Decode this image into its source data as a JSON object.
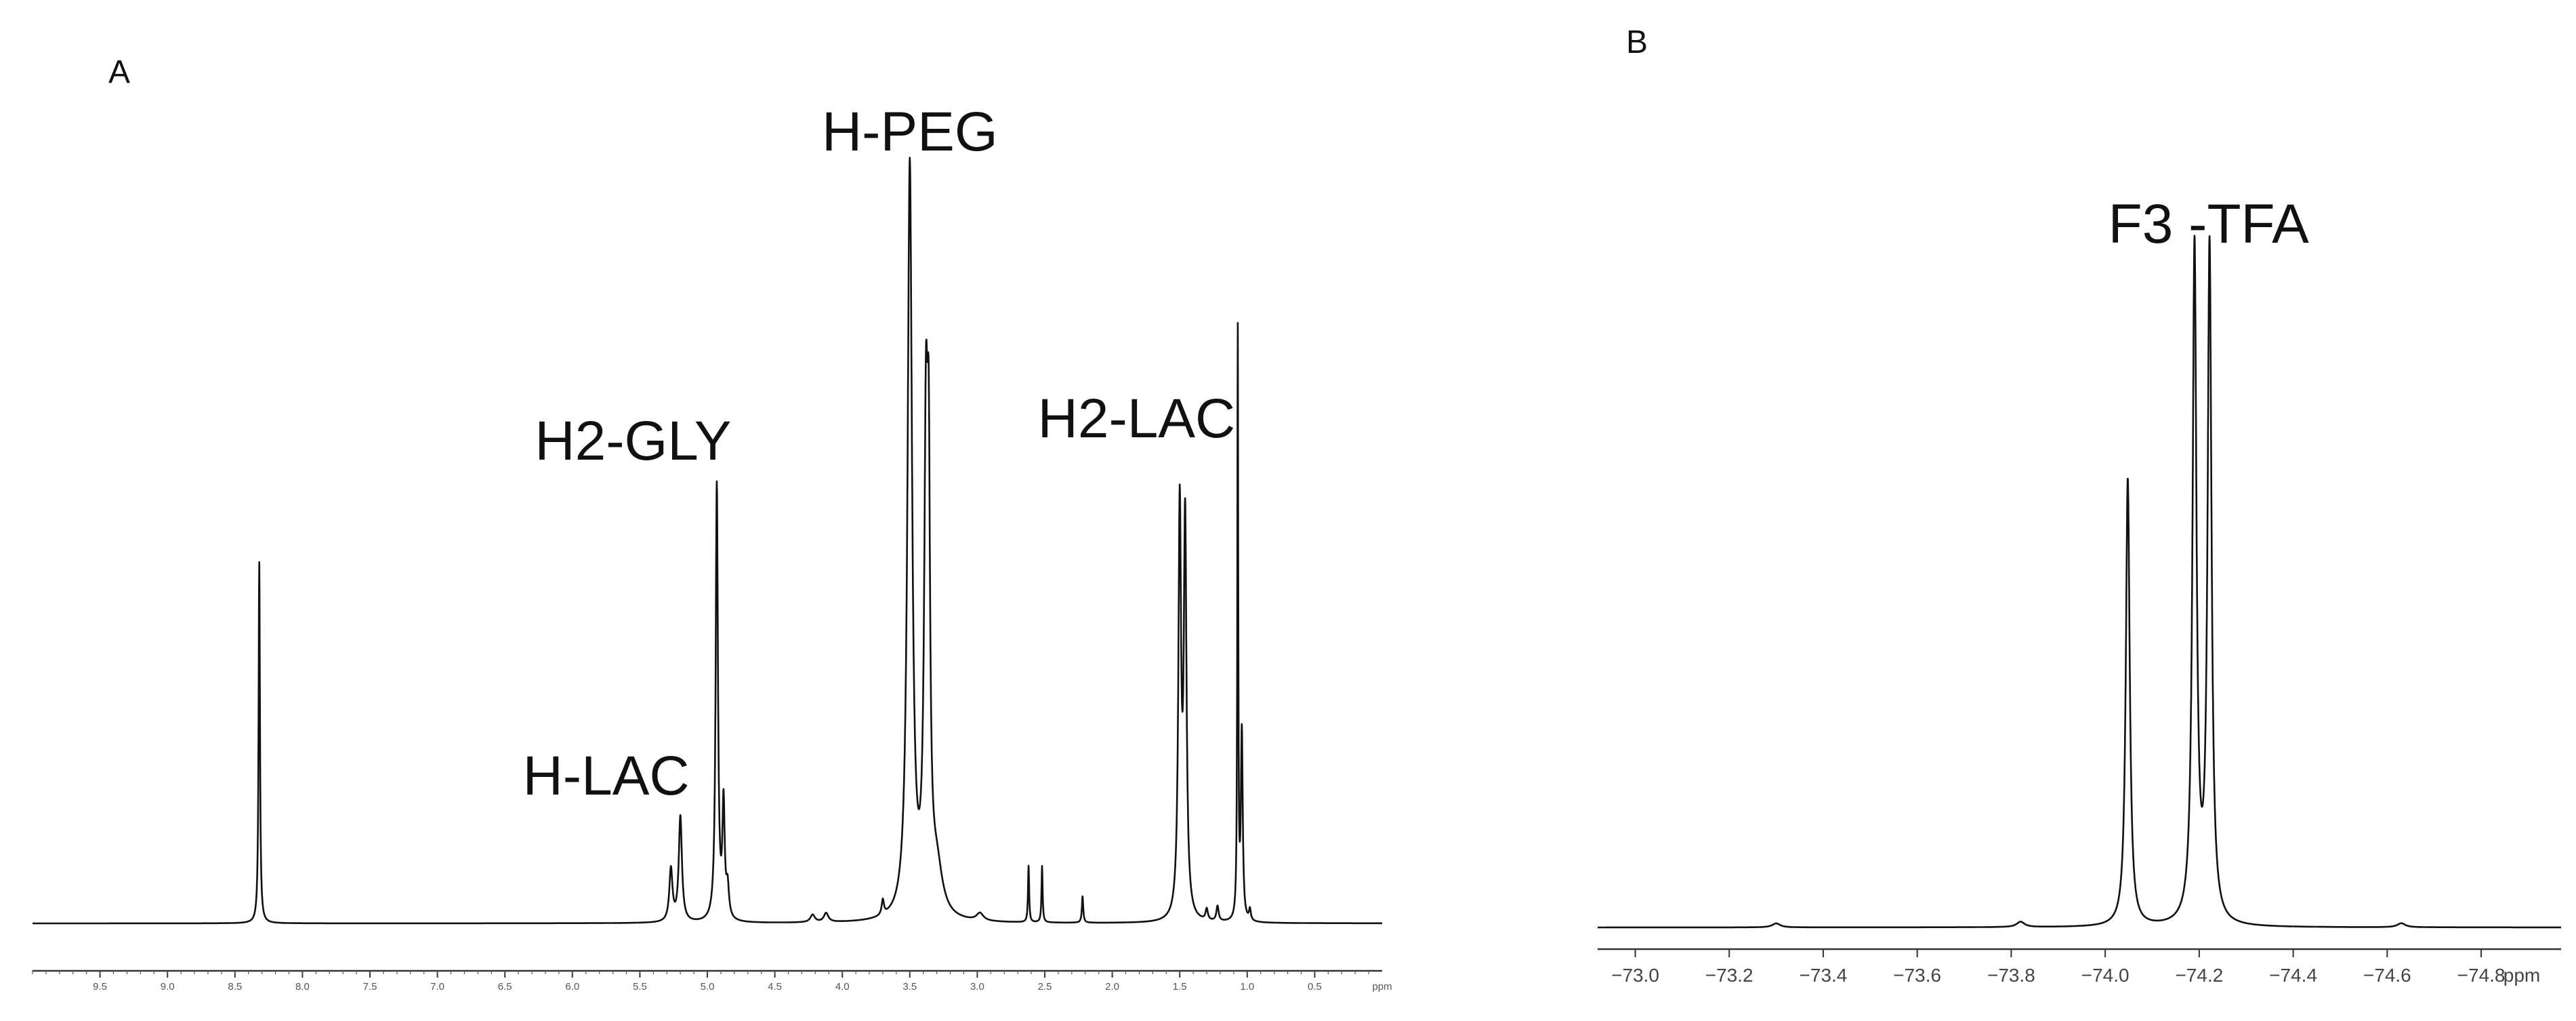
{
  "figure": {
    "panel_a_letter": "A",
    "panel_b_letter": "B"
  },
  "chart_data": [
    {
      "type": "line",
      "panel": "A",
      "title": "",
      "xlabel": "",
      "ylabel": "",
      "x_unit": "ppm",
      "xlim": [
        10.0,
        0.0
      ],
      "x_reversed": true,
      "ylim": [
        0,
        105
      ],
      "x_ticks": [
        9.5,
        9.0,
        8.5,
        8.0,
        7.5,
        7.0,
        6.5,
        6.0,
        5.5,
        5.0,
        4.5,
        4.0,
        3.5,
        3.0,
        2.5,
        2.0,
        1.5,
        1.0,
        0.5
      ],
      "x_tick_labels": [
        "9.5",
        "9.0",
        "8.5",
        "8.0",
        "7.5",
        "7.0",
        "6.5",
        "6.0",
        "5.5",
        "5.0",
        "4.5",
        "4.0",
        "3.5",
        "3.0",
        "2.5",
        "2.0",
        "1.5",
        "1.0",
        "0.5"
      ],
      "grid": false,
      "peaks": [
        {
          "x": 8.32,
          "h": 48,
          "w": 0.006
        },
        {
          "x": 5.27,
          "h": 7,
          "w": 0.014
        },
        {
          "x": 5.2,
          "h": 14,
          "w": 0.014
        },
        {
          "x": 4.93,
          "h": 58,
          "w": 0.01
        },
        {
          "x": 4.88,
          "h": 15,
          "w": 0.01
        },
        {
          "x": 4.85,
          "h": 4,
          "w": 0.012
        },
        {
          "x": 4.22,
          "h": 1,
          "w": 0.02
        },
        {
          "x": 4.12,
          "h": 1.2,
          "w": 0.02
        },
        {
          "x": 3.7,
          "h": 2,
          "w": 0.01
        },
        {
          "x": 3.5,
          "h": 100,
          "w": 0.02
        },
        {
          "x": 3.38,
          "h": 60,
          "w": 0.016
        },
        {
          "x": 3.36,
          "h": 46,
          "w": 0.012
        },
        {
          "x": 3.3,
          "h": 6,
          "w": 0.05
        },
        {
          "x": 2.98,
          "h": 1,
          "w": 0.03
        },
        {
          "x": 2.62,
          "h": 7.5,
          "w": 0.005
        },
        {
          "x": 2.52,
          "h": 7.5,
          "w": 0.005
        },
        {
          "x": 2.22,
          "h": 3.5,
          "w": 0.006
        },
        {
          "x": 1.5,
          "h": 54,
          "w": 0.012
        },
        {
          "x": 1.46,
          "h": 52,
          "w": 0.012
        },
        {
          "x": 1.3,
          "h": 1.5,
          "w": 0.01
        },
        {
          "x": 1.22,
          "h": 2,
          "w": 0.01
        },
        {
          "x": 1.07,
          "h": 78,
          "w": 0.004
        },
        {
          "x": 1.04,
          "h": 25,
          "w": 0.008
        },
        {
          "x": 0.98,
          "h": 1.5,
          "w": 0.008
        }
      ],
      "annotations": [
        {
          "text": "H-PEG",
          "x": 3.5
        },
        {
          "text": "H2-GLY",
          "x": 5.55
        },
        {
          "text": "H-LAC",
          "x": 5.75
        },
        {
          "text": "H2-LAC",
          "x": 1.82
        }
      ]
    },
    {
      "type": "line",
      "panel": "B",
      "title": "",
      "xlabel": "",
      "ylabel": "",
      "x_unit": "ppm",
      "xlim": [
        -72.92,
        -74.97
      ],
      "x_reversed": true,
      "ylim": [
        0,
        105
      ],
      "x_ticks": [
        -73.0,
        -73.2,
        -73.4,
        -73.6,
        -73.8,
        -74.0,
        -74.2,
        -74.4,
        -74.6,
        -74.8
      ],
      "x_tick_labels": [
        "−73.0",
        "−73.2",
        "−73.4",
        "−73.6",
        "−73.8",
        "−74.0",
        "−74.2",
        "−74.4",
        "−74.6",
        "−74.8"
      ],
      "grid": false,
      "peaks": [
        {
          "x": -74.048,
          "h": 67,
          "w": 0.005
        },
        {
          "x": -74.19,
          "h": 101,
          "w": 0.005
        },
        {
          "x": -74.222,
          "h": 101,
          "w": 0.005
        },
        {
          "x": -73.82,
          "h": 0.8,
          "w": 0.01
        },
        {
          "x": -73.3,
          "h": 0.6,
          "w": 0.01
        },
        {
          "x": -74.63,
          "h": 0.6,
          "w": 0.01
        }
      ],
      "annotations": [
        {
          "text": "F3 -TFA",
          "x": -74.22
        }
      ]
    }
  ]
}
